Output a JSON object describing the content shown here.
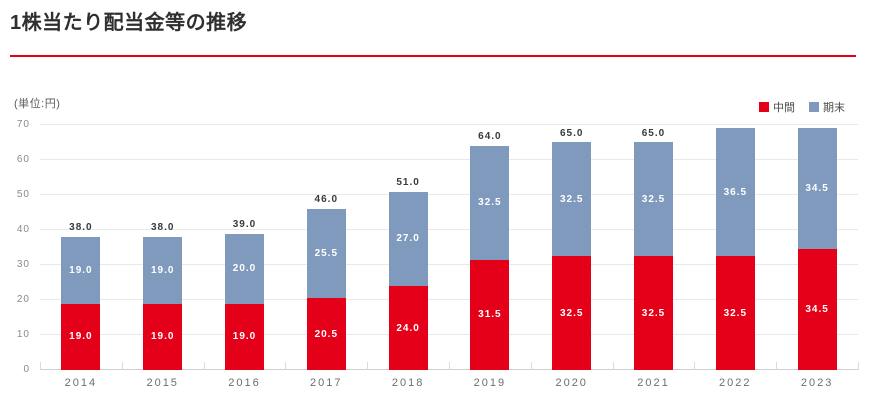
{
  "page": {
    "title": "1株当たり配当金等の推移",
    "unit_label": "(単位:円)"
  },
  "legend": {
    "interim_label": "中間",
    "yearend_label": "期末"
  },
  "colors": {
    "interim": "#e50019",
    "yearend": "#7f9abc",
    "accent_rule": "#e50019"
  },
  "chart_data": {
    "type": "bar",
    "stacked": true,
    "title": "1株当たり配当金等の推移",
    "unit": "円",
    "categories": [
      "2014",
      "2015",
      "2016",
      "2017",
      "2018",
      "2019",
      "2020",
      "2021",
      "2022",
      "2023"
    ],
    "series": [
      {
        "name": "中間",
        "color_key": "interim",
        "values": [
          19.0,
          19.0,
          19.0,
          20.5,
          24.0,
          31.5,
          32.5,
          32.5,
          32.5,
          34.5
        ]
      },
      {
        "name": "期末",
        "color_key": "yearend",
        "values": [
          19.0,
          19.0,
          20.0,
          25.5,
          27.0,
          32.5,
          32.5,
          32.5,
          36.5,
          34.5
        ]
      }
    ],
    "totals": [
      38.0,
      38.0,
      39.0,
      46.0,
      51.0,
      64.0,
      65.0,
      65.0,
      69.0,
      69.0
    ],
    "total_labels": [
      "38.0",
      "38.0",
      "39.0",
      "46.0",
      "51.0",
      "64.0",
      "65.0",
      "65.0",
      "",
      ""
    ],
    "ylim": [
      0,
      70
    ],
    "yticks": [
      0,
      10,
      20,
      30,
      40,
      50,
      60,
      70
    ],
    "grid": true,
    "legend_position": "top-right"
  }
}
